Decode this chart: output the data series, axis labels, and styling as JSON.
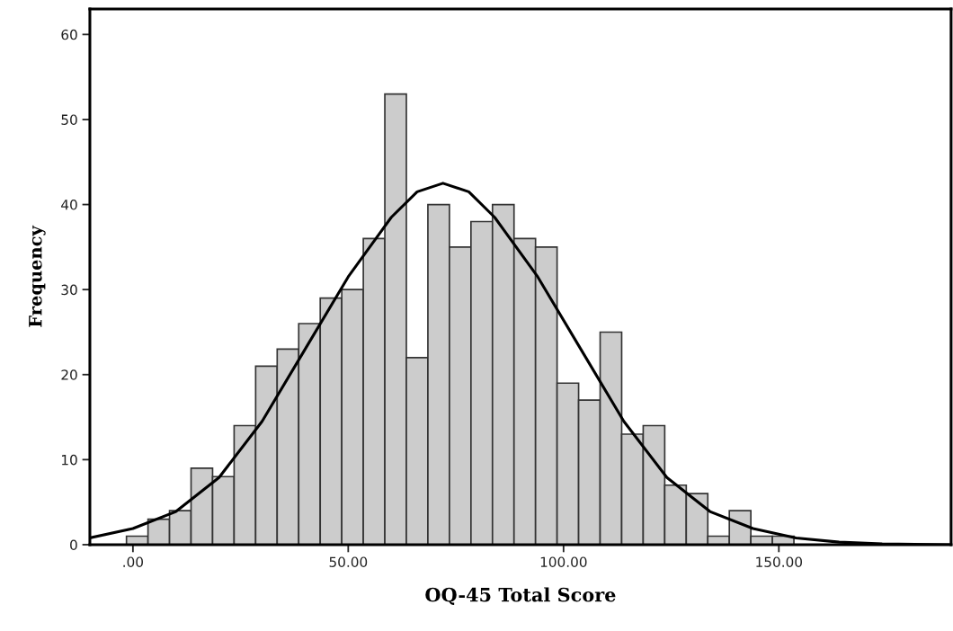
{
  "chart_data": {
    "type": "histogram",
    "xlabel": "OQ-45 Total Score",
    "ylabel": "Frequency",
    "bins": [
      -1.5,
      3.5,
      8.5,
      13.5,
      18.5,
      23.5,
      28.5,
      33.5,
      38.5,
      43.5,
      48.5,
      53.5,
      58.5,
      63.5,
      68.5,
      73.5,
      78.5,
      83.5,
      88.5,
      93.5,
      98.5,
      103.5,
      108.5,
      113.5,
      118.5,
      123.5,
      128.5,
      133.5,
      138.5,
      143.5,
      148.5,
      153.5
    ],
    "values": [
      1,
      3,
      4,
      9,
      8,
      14,
      21,
      23,
      26,
      29,
      30,
      36,
      53,
      22,
      40,
      35,
      38,
      40,
      36,
      35,
      19,
      17,
      25,
      13,
      14,
      7,
      6,
      1,
      4,
      1,
      1
    ],
    "color": "#cccccc",
    "series": [
      {
        "type": "line",
        "color": "#000000",
        "x": [
          -10,
          0,
          10,
          20,
          30,
          40,
          50,
          60,
          66,
          72,
          78,
          84,
          94,
          104,
          114,
          124,
          134,
          144,
          154,
          164,
          174,
          190
        ],
        "values": [
          0.8,
          1.9,
          3.9,
          7.9,
          14.5,
          23,
          31.5,
          38.5,
          41.5,
          42.5,
          41.5,
          38.5,
          31.5,
          23,
          14.5,
          7.9,
          3.9,
          1.9,
          0.8,
          0.3,
          0.1,
          0
        ]
      }
    ],
    "xlim": [
      -10,
      190
    ],
    "ylim": [
      0,
      63
    ],
    "xticks": [
      {
        "value": 0,
        "label": ".00"
      },
      {
        "value": 50,
        "label": "50.00"
      },
      {
        "value": 100,
        "label": "100.00"
      },
      {
        "value": 150,
        "label": "150.00"
      }
    ],
    "yticks": [
      0,
      10,
      20,
      30,
      40,
      50,
      60
    ],
    "grid": false
  }
}
